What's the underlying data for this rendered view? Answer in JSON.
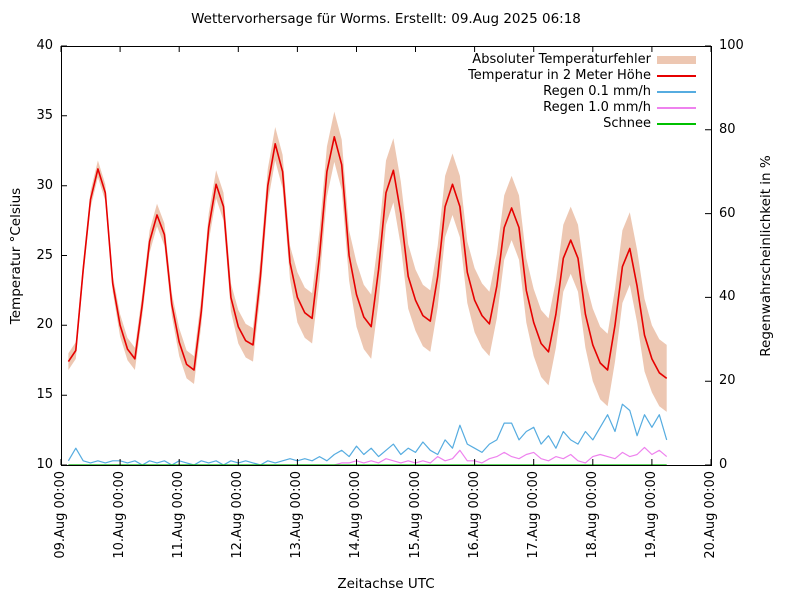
{
  "title": "Wettervorhersage für Worms. Erstellt: 09.Aug 2025 06:18",
  "axes": {
    "x_label": "Zeitachse UTC",
    "y_left_label": "Temperatur °Celsius",
    "y_right_label": "Regenwahrscheinlichkeit in %",
    "x_ticks": [
      "09.Aug 00:00",
      "10.Aug 00:00",
      "11.Aug 00:00",
      "12.Aug 00:00",
      "13.Aug 00:00",
      "14.Aug 00:00",
      "15.Aug 00:00",
      "16.Aug 00:00",
      "17.Aug 00:00",
      "18.Aug 00:00",
      "19.Aug 00:00",
      "20.Aug 00:00"
    ],
    "x_tick_hours": [
      0,
      24,
      48,
      72,
      96,
      120,
      144,
      168,
      192,
      216,
      240,
      264
    ],
    "y_left_ticks": [
      10,
      15,
      20,
      25,
      30,
      35,
      40
    ],
    "y_right_ticks": [
      0,
      20,
      40,
      60,
      80,
      100
    ]
  },
  "legend": [
    {
      "label": "Absoluter Temperaturfehler",
      "type": "band",
      "color": "#edc7b2"
    },
    {
      "label": "Temperatur in 2 Meter Höhe",
      "type": "line",
      "color": "#e60000"
    },
    {
      "label": "Regen 0.1 mm/h",
      "type": "line",
      "color": "#56ace0"
    },
    {
      "label": "Regen 1.0 mm/h",
      "type": "line",
      "color": "#ee82ee"
    },
    {
      "label": "Schnee",
      "type": "line",
      "color": "#00c000"
    }
  ],
  "chart_data": {
    "type": "line",
    "x_unit": "hours since 09.Aug 2025 00:00 UTC",
    "x_range_hours": [
      0,
      264
    ],
    "y_left_range": [
      10,
      40
    ],
    "y_right_range": [
      0,
      100
    ],
    "grid": false,
    "legend_position": "top-right-inside",
    "t": [
      3,
      6,
      9,
      12,
      15,
      18,
      21,
      24,
      27,
      30,
      33,
      36,
      39,
      42,
      45,
      48,
      51,
      54,
      57,
      60,
      63,
      66,
      69,
      72,
      75,
      78,
      81,
      84,
      87,
      90,
      93,
      96,
      99,
      102,
      105,
      108,
      111,
      114,
      117,
      120,
      123,
      126,
      129,
      132,
      135,
      138,
      141,
      144,
      147,
      150,
      153,
      156,
      159,
      162,
      165,
      168,
      171,
      174,
      177,
      180,
      183,
      186,
      189,
      192,
      195,
      198,
      201,
      204,
      207,
      210,
      213,
      216,
      219,
      222,
      225,
      228,
      231,
      234,
      237,
      240,
      243,
      246
    ],
    "series": [
      {
        "name": "Absoluter Temperaturfehler",
        "axis": "left",
        "style": "band",
        "color": "#edc7b2",
        "halfwidth": [
          0.6,
          0.6,
          0.6,
          0.6,
          0.6,
          0.6,
          0.6,
          0.8,
          0.8,
          0.8,
          0.8,
          0.8,
          0.8,
          0.8,
          0.8,
          1.0,
          1.0,
          1.0,
          1.0,
          1.0,
          1.0,
          1.0,
          1.0,
          1.2,
          1.2,
          1.2,
          1.2,
          1.2,
          1.2,
          1.2,
          1.2,
          1.8,
          1.8,
          1.8,
          1.8,
          1.8,
          1.8,
          1.8,
          1.8,
          2.3,
          2.3,
          2.3,
          2.3,
          2.3,
          2.3,
          2.3,
          2.3,
          2.2,
          2.2,
          2.2,
          2.2,
          2.2,
          2.2,
          2.2,
          2.2,
          2.3,
          2.3,
          2.3,
          2.3,
          2.3,
          2.3,
          2.3,
          2.3,
          2.4,
          2.4,
          2.4,
          2.4,
          2.4,
          2.4,
          2.4,
          2.4,
          2.6,
          2.6,
          2.6,
          2.6,
          2.6,
          2.6,
          2.6,
          2.6,
          2.4,
          2.4,
          2.4
        ]
      },
      {
        "name": "Temperatur in 2 Meter Höhe",
        "axis": "left",
        "style": "line",
        "color": "#e60000",
        "values": [
          17.4,
          18.2,
          24.0,
          29.0,
          31.2,
          29.5,
          23.0,
          20.0,
          18.3,
          17.6,
          21.5,
          26.0,
          27.9,
          26.5,
          21.5,
          18.8,
          17.2,
          16.8,
          21.0,
          27.0,
          30.1,
          28.5,
          22.0,
          19.9,
          18.9,
          18.6,
          23.5,
          30.0,
          33.0,
          31.0,
          24.5,
          22.0,
          20.9,
          20.5,
          25.0,
          31.0,
          33.5,
          31.5,
          25.0,
          22.2,
          20.6,
          19.9,
          24.0,
          29.5,
          31.1,
          28.0,
          23.5,
          21.8,
          20.7,
          20.3,
          23.5,
          28.5,
          30.1,
          28.5,
          23.8,
          21.8,
          20.7,
          20.1,
          22.8,
          27.0,
          28.4,
          27.0,
          22.5,
          20.2,
          18.7,
          18.1,
          20.8,
          24.8,
          26.1,
          24.8,
          20.8,
          18.6,
          17.3,
          16.8,
          20.0,
          24.2,
          25.5,
          22.8,
          19.3,
          17.6,
          16.6,
          16.2
        ]
      },
      {
        "name": "Regen 0.1 mm/h",
        "axis": "right",
        "style": "line",
        "color": "#56ace0",
        "values": [
          1,
          4,
          1,
          0.5,
          1,
          0.5,
          1,
          1,
          0.5,
          1,
          0,
          1,
          0.5,
          1,
          0,
          1,
          0.5,
          0,
          1,
          0.5,
          1,
          0,
          1,
          0.5,
          1,
          0.5,
          0,
          1,
          0.5,
          1,
          1.5,
          1,
          1.5,
          1,
          2,
          1,
          2.5,
          3.5,
          2,
          4.5,
          2.5,
          4,
          2,
          3.5,
          5,
          2.5,
          4,
          3,
          5.5,
          3.5,
          2.5,
          6,
          4,
          9.5,
          5,
          4,
          3,
          5,
          6,
          10,
          10,
          6,
          8,
          9,
          5,
          7,
          4,
          8,
          6,
          5,
          8,
          6,
          9,
          12,
          8,
          14.5,
          13,
          7,
          12,
          9,
          12,
          6
        ]
      },
      {
        "name": "Regen 1.0 mm/h",
        "axis": "right",
        "style": "line",
        "color": "#ee82ee",
        "values": [
          0,
          0,
          0,
          0,
          0,
          0,
          0,
          0,
          0,
          0,
          0,
          0,
          0,
          0,
          0,
          0,
          0,
          0,
          0,
          0,
          0,
          0,
          0,
          0,
          0,
          0,
          0,
          0,
          0,
          0,
          0,
          0,
          0,
          0,
          0,
          0,
          0,
          0.5,
          0.5,
          1,
          0.5,
          1,
          0.5,
          1.5,
          1,
          0.5,
          1,
          0.5,
          1,
          0.5,
          2,
          1,
          1.5,
          3.5,
          1,
          1,
          0.5,
          1.5,
          2,
          3,
          2,
          1.5,
          2.5,
          3,
          1.5,
          1,
          2,
          1.5,
          2.5,
          1,
          0.5,
          2,
          2.5,
          2,
          1.5,
          3,
          2,
          2.5,
          4.2,
          2.5,
          3.5,
          2
        ]
      },
      {
        "name": "Schnee",
        "axis": "right",
        "style": "line",
        "color": "#00c000",
        "values": [
          0,
          0,
          0,
          0,
          0,
          0,
          0,
          0,
          0,
          0,
          0,
          0,
          0,
          0,
          0,
          0,
          0,
          0,
          0,
          0,
          0,
          0,
          0,
          0,
          0,
          0,
          0,
          0,
          0,
          0,
          0,
          0,
          0,
          0,
          0,
          0,
          0,
          0,
          0,
          0,
          0,
          0,
          0,
          0,
          0,
          0,
          0,
          0,
          0,
          0,
          0,
          0,
          0,
          0,
          0,
          0,
          0,
          0,
          0,
          0,
          0,
          0,
          0,
          0,
          0,
          0,
          0,
          0,
          0,
          0,
          0,
          0,
          0,
          0,
          0,
          0,
          0,
          0,
          0,
          0,
          0,
          0
        ]
      }
    ]
  }
}
